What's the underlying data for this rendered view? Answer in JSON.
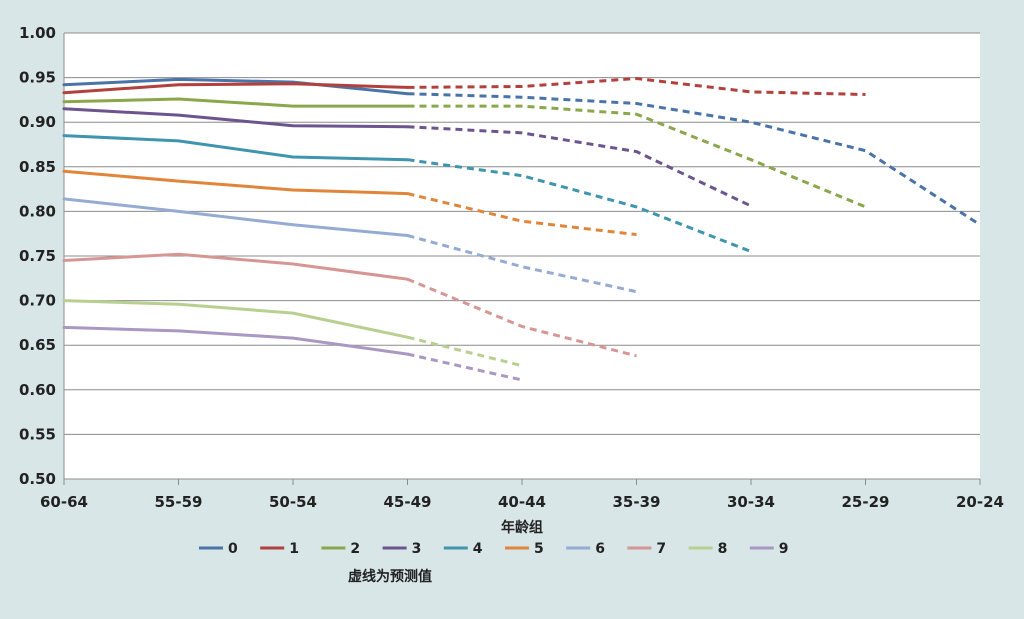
{
  "chart_data": {
    "type": "line",
    "xlabel": "年龄组",
    "ylabel": "",
    "categories": [
      "60-64",
      "55-59",
      "50-54",
      "45-49",
      "40-44",
      "35-39",
      "30-34",
      "25-29",
      "20-24"
    ],
    "ylim": [
      0.5,
      1.0
    ],
    "yticks": [
      "0.50",
      "0.55",
      "0.60",
      "0.65",
      "0.70",
      "0.75",
      "0.80",
      "0.85",
      "0.90",
      "0.95",
      "1.00"
    ],
    "grid": true,
    "legend_position": "bottom",
    "note": "虚线为预测值",
    "solid_through_index": 3,
    "series": [
      {
        "name": "0",
        "color": "#4a73a8",
        "values": [
          0.942,
          0.948,
          0.945,
          0.932,
          0.928,
          0.921,
          0.9,
          0.868,
          0.785
        ]
      },
      {
        "name": "1",
        "color": "#b2403c",
        "values": [
          0.933,
          0.942,
          0.943,
          0.939,
          0.94,
          0.949,
          0.934,
          0.931,
          null
        ]
      },
      {
        "name": "2",
        "color": "#8aa74c",
        "values": [
          0.923,
          0.926,
          0.918,
          0.918,
          0.918,
          0.909,
          0.858,
          0.805,
          null
        ]
      },
      {
        "name": "3",
        "color": "#6c548f",
        "values": [
          0.915,
          0.908,
          0.896,
          0.895,
          0.888,
          0.867,
          0.806,
          null,
          null
        ]
      },
      {
        "name": "4",
        "color": "#3e95ad",
        "values": [
          0.885,
          0.879,
          0.861,
          0.858,
          0.84,
          0.805,
          0.755,
          null,
          null
        ]
      },
      {
        "name": "5",
        "color": "#e0853a",
        "values": [
          0.845,
          0.834,
          0.824,
          0.82,
          0.789,
          0.774,
          null,
          null,
          null
        ]
      },
      {
        "name": "6",
        "color": "#95abd2",
        "values": [
          0.814,
          0.8,
          0.785,
          0.773,
          0.738,
          0.71,
          null,
          null,
          null
        ]
      },
      {
        "name": "7",
        "color": "#d69693",
        "values": [
          0.745,
          0.752,
          0.741,
          0.724,
          0.671,
          0.638,
          null,
          null,
          null
        ]
      },
      {
        "name": "8",
        "color": "#b8d08f",
        "values": [
          0.7,
          0.696,
          0.686,
          0.659,
          0.627,
          null,
          null,
          null,
          null
        ]
      },
      {
        "name": "9",
        "color": "#a898c2",
        "values": [
          0.67,
          0.666,
          0.658,
          0.64,
          0.611,
          null,
          null,
          null,
          null
        ]
      }
    ]
  }
}
